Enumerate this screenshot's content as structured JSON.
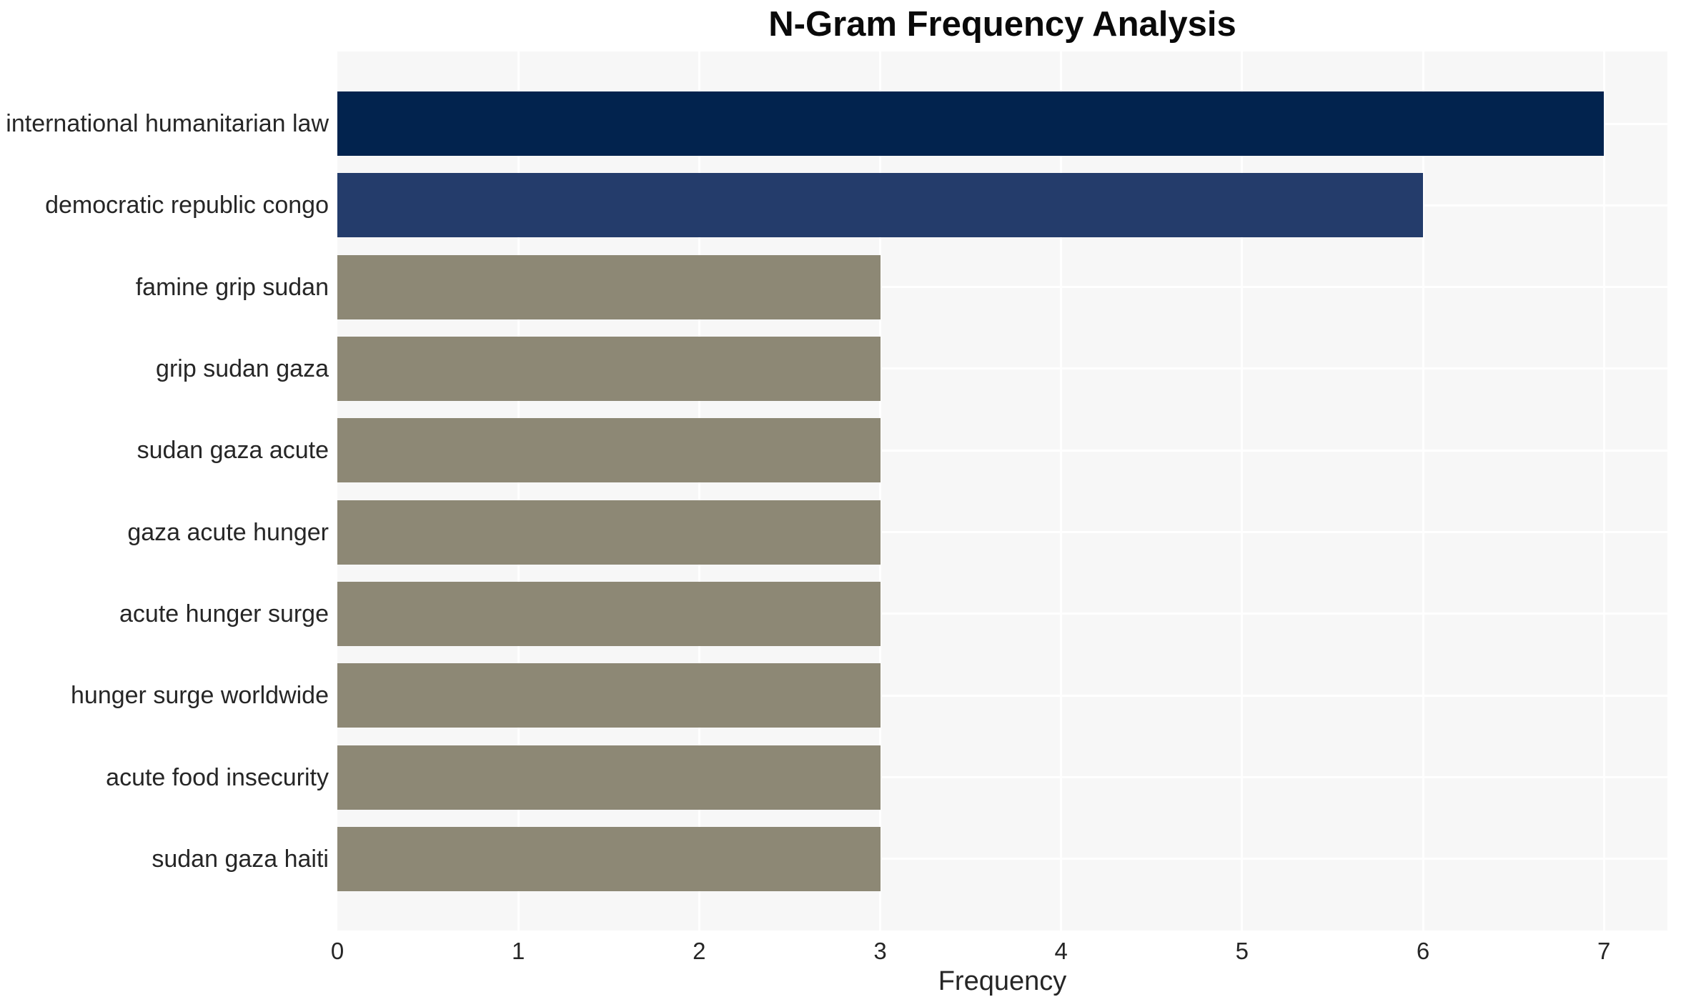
{
  "chart_data": {
    "type": "bar",
    "orientation": "horizontal",
    "title": "N-Gram Frequency Analysis",
    "xlabel": "Frequency",
    "ylabel": "",
    "categories": [
      "international humanitarian law",
      "democratic republic congo",
      "famine grip sudan",
      "grip sudan gaza",
      "sudan gaza acute",
      "gaza acute hunger",
      "acute hunger surge",
      "hunger surge worldwide",
      "acute food insecurity",
      "sudan gaza haiti"
    ],
    "values": [
      7,
      6,
      3,
      3,
      3,
      3,
      3,
      3,
      3,
      3
    ],
    "xlim": [
      0,
      7.35
    ],
    "xticks": [
      0,
      1,
      2,
      3,
      4,
      5,
      6,
      7
    ],
    "grid": true,
    "legend": "none",
    "colors": {
      "bar_colors": [
        "#02234e",
        "#243c6b",
        "#8d8875",
        "#8d8875",
        "#8d8875",
        "#8d8875",
        "#8d8875",
        "#8d8875",
        "#8d8875",
        "#8d8875"
      ],
      "plot_background": "#f7f7f7",
      "gridline": "#ffffff",
      "text": "#262626",
      "title_text": "#0a0a0a",
      "page_background": "#ffffff"
    }
  }
}
